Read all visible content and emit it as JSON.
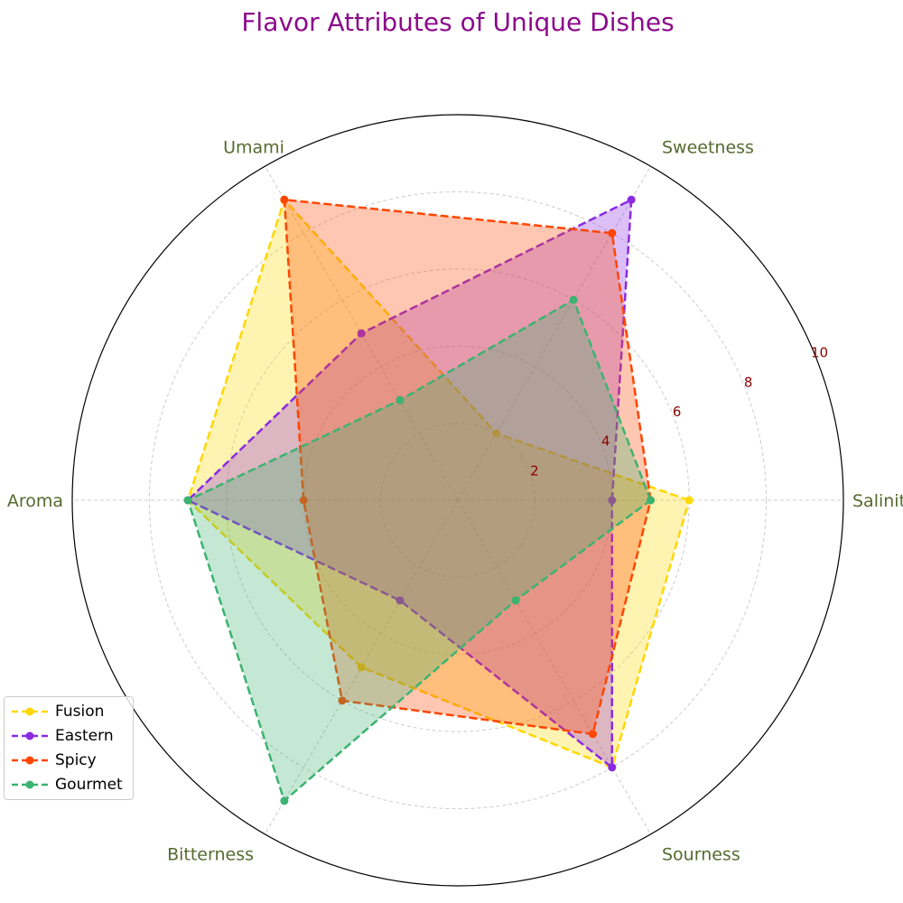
{
  "chart_data": {
    "type": "radar",
    "title": "Flavor Attributes of Unique Dishes",
    "axes": [
      "Salinity",
      "Sweetness",
      "Umami",
      "Aroma",
      "Bitterness",
      "Sourness"
    ],
    "rlim": [
      0,
      10
    ],
    "rticks": [
      "2",
      "4",
      "6",
      "8",
      "10"
    ],
    "grid": true,
    "legend_position": "lower-left",
    "series": [
      {
        "name": "Fusion",
        "color": "#FFD700",
        "values": [
          6,
          2,
          9,
          7,
          5,
          8
        ]
      },
      {
        "name": "Eastern",
        "color": "#8A2BE2",
        "values": [
          4,
          9,
          5,
          7,
          3,
          8
        ]
      },
      {
        "name": "Spicy",
        "color": "#FF4500",
        "values": [
          5,
          8,
          9,
          4,
          6,
          7
        ]
      },
      {
        "name": "Gourmet",
        "color": "#3CB371",
        "values": [
          5,
          6,
          3,
          7,
          9,
          3
        ]
      }
    ]
  }
}
